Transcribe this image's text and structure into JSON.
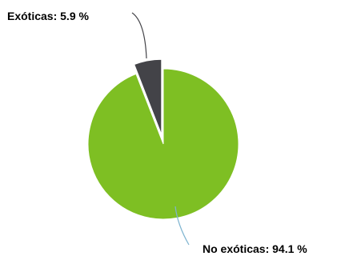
{
  "chart_data": {
    "type": "pie",
    "title": "",
    "slices": [
      {
        "label": "Exóticas",
        "value": 5.9,
        "display": "Exóticas: 5.9 %",
        "color": "#434348",
        "exploded": true
      },
      {
        "label": "No exóticas",
        "value": 94.1,
        "display": "No exóticas: 94.1 %",
        "color": "#7ebf23",
        "exploded": false
      }
    ],
    "legend": "none",
    "label_style": "outside-with-connectors"
  }
}
